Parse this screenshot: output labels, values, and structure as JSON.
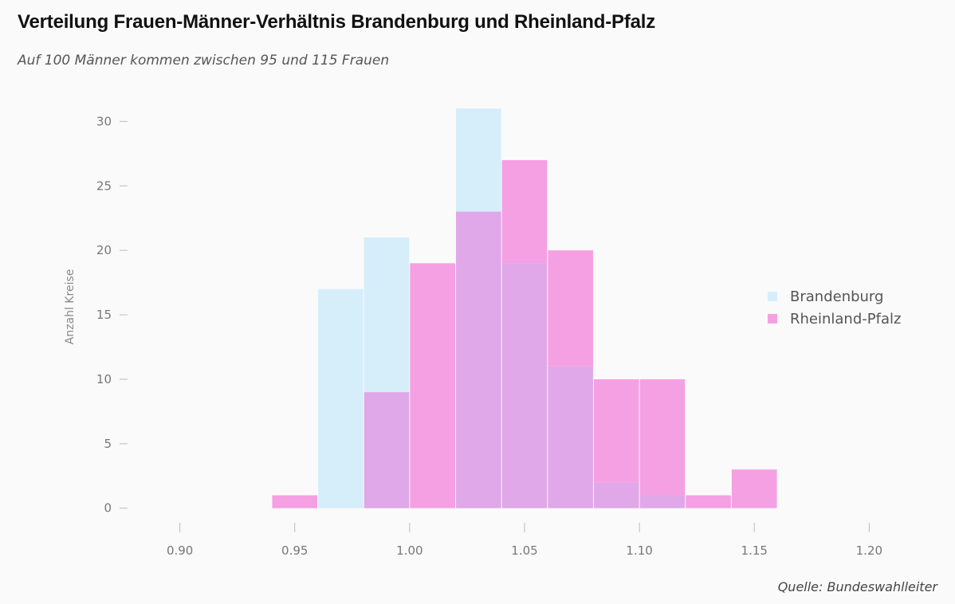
{
  "chart_data": {
    "type": "histogram",
    "title": "Verteilung Frauen-Männer-Verhältnis Brandenburg und Rheinland-Pfalz",
    "subtitle": "Auf 100 Männer kommen zwischen 95 und 115 Frauen",
    "source": "Quelle: Bundeswahlleiter",
    "xlabel": "",
    "ylabel": "Anzahl Kreise",
    "xlim": [
      0.88,
      1.22
    ],
    "ylim": [
      -1.5,
      32
    ],
    "x_ticks": [
      0.9,
      0.95,
      1.0,
      1.05,
      1.1,
      1.15,
      1.2
    ],
    "x_tick_labels": [
      "0.90",
      "0.95",
      "1.00",
      "1.05",
      "1.10",
      "1.15",
      "1.20"
    ],
    "y_ticks": [
      0,
      5,
      10,
      15,
      20,
      25,
      30
    ],
    "y_tick_labels": [
      "0",
      "5",
      "10",
      "15",
      "20",
      "25",
      "30"
    ],
    "bin_edges": [
      0.94,
      0.96,
      0.98,
      1.0,
      1.02,
      1.04,
      1.06,
      1.08,
      1.1,
      1.12,
      1.14,
      1.16
    ],
    "series": [
      {
        "name": "Brandenburg",
        "color": "#d6eefa",
        "values": [
          0,
          17,
          21,
          0,
          31,
          19,
          11,
          2,
          1,
          0,
          0
        ]
      },
      {
        "name": "Rheinland-Pfalz",
        "color": "#f5a0e3",
        "values": [
          1,
          0,
          9,
          19,
          23,
          27,
          20,
          10,
          10,
          1,
          3
        ]
      }
    ],
    "overlap_color": "#e0a8e8",
    "legend_position": "right"
  }
}
